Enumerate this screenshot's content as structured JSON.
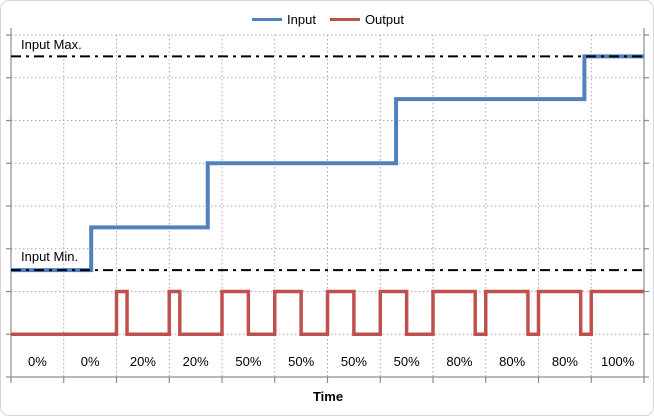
{
  "chart_data": {
    "type": "line",
    "title": "",
    "xlabel": "Time",
    "ylabel": "",
    "x_categories": [
      "0%",
      "0%",
      "20%",
      "20%",
      "50%",
      "50%",
      "50%",
      "50%",
      "80%",
      "80%",
      "80%",
      "100%"
    ],
    "x_axis": {
      "num_periods": 12,
      "tick_labels_meaning": "output duty cycle per PWM period",
      "labels_position": "inside above axis"
    },
    "y_axis": {
      "unit_range": [
        0,
        8
      ],
      "gridline_step": 1,
      "tick_labels_visible": false
    },
    "grid": {
      "horizontal": true,
      "vertical": true,
      "style": "dotted"
    },
    "legend": {
      "position": "top-center",
      "entries": [
        "Input",
        "Output"
      ]
    },
    "series": [
      {
        "name": "Input",
        "color": "#4F81BD",
        "kind": "step",
        "value_scale": "percent of input range (Input Min = 0%, Input Max = 100%)",
        "range_units": {
          "min_unit": 2.5,
          "max_unit": 7.5
        },
        "points": [
          [
            0,
            0
          ],
          [
            1.52,
            0
          ],
          [
            1.52,
            20
          ],
          [
            3.73,
            20
          ],
          [
            3.73,
            50
          ],
          [
            7.3,
            50
          ],
          [
            7.3,
            80
          ],
          [
            10.87,
            80
          ],
          [
            10.87,
            100
          ],
          [
            12,
            100
          ]
        ]
      },
      {
        "name": "Output",
        "color": "#C0504D",
        "kind": "pwm-square-wave",
        "low_unit": 1,
        "high_unit": 2,
        "duty_cycle_pct_per_period": [
          0,
          0,
          20,
          20,
          50,
          50,
          50,
          50,
          80,
          80,
          80,
          100
        ]
      }
    ],
    "reference_lines": [
      {
        "label": "Input Max.",
        "unit": 7.5,
        "style": "dash-dot",
        "color": "#000000"
      },
      {
        "label": "Input Min.",
        "unit": 2.5,
        "style": "dash-dot",
        "color": "#000000"
      }
    ]
  },
  "colors": {
    "input_line": "#4F81BD",
    "output_line": "#C0504D",
    "axis": "#8C8C8C",
    "gridline": "#A9A9A9",
    "reference_line": "#000000",
    "frame_border": "#D5D5D5",
    "background": "#FFFFFF",
    "text": "#000000"
  }
}
